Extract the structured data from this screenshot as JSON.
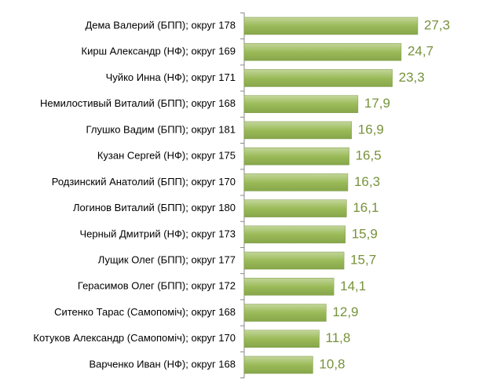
{
  "chart_data": {
    "type": "bar",
    "orientation": "horizontal",
    "categories": [
      "Дема Валерий (БПП); округ 178",
      "Кирш Александр (НФ); округ 169",
      "Чуйко Инна (НФ); округ 171",
      "Немилостивый Виталий (БПП); округ 168",
      "Глушко Вадим (БПП); округ 181",
      "Кузан Сергей (НФ); округ 175",
      "Родзинский Анатолий (БПП); округ 170",
      "Логинов Виталий (БПП); округ 180",
      "Черный Дмитрий (НФ); округ 173",
      "Лущик Олег (БПП); округ 177",
      "Герасимов Олег (БПП); округ 172",
      "Ситенко Тарас (Самопоміч); округ 168",
      "Котуков Александр (Самопоміч); округ 170",
      "Варченко Иван (НФ); округ 168"
    ],
    "values": [
      27.3,
      24.7,
      23.3,
      17.9,
      16.9,
      16.5,
      16.3,
      16.1,
      15.9,
      15.7,
      14.1,
      12.9,
      11.8,
      10.8
    ],
    "value_labels": [
      "27,3",
      "24,7",
      "23,3",
      "17,9",
      "16,9",
      "16,5",
      "16,3",
      "16,1",
      "15,9",
      "15,7",
      "14,1",
      "12,9",
      "11,8",
      "10,8"
    ],
    "color": "#9bbb59"
  }
}
